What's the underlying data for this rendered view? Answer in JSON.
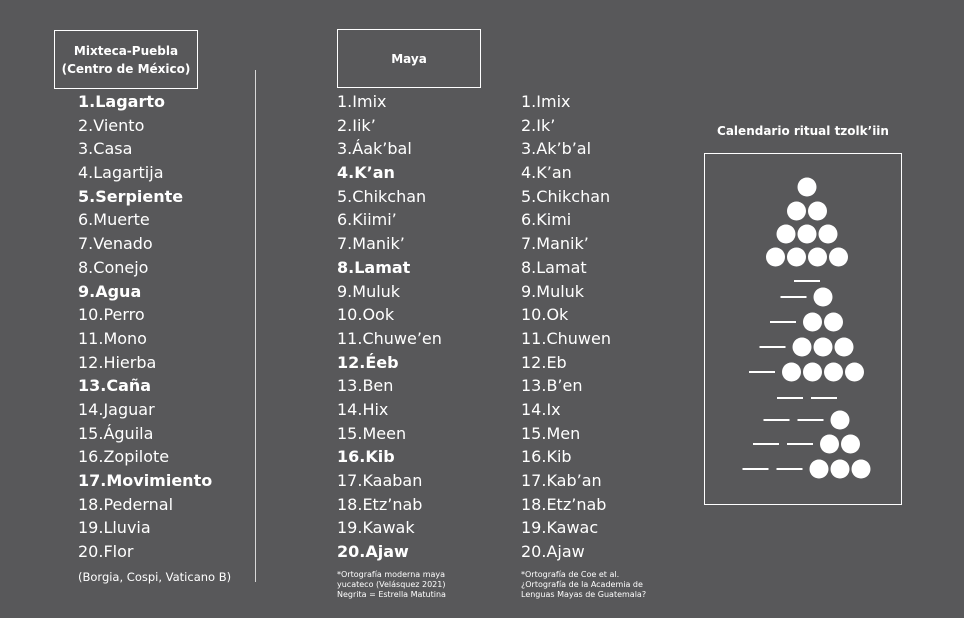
{
  "headers": {
    "mixteca": [
      "Mixteca-Puebla",
      "(Centro de México)"
    ],
    "maya": "Maya"
  },
  "mixteca_days": [
    {
      "label": "1.Lagarto",
      "bold": true
    },
    {
      "label": "2.Viento",
      "bold": false
    },
    {
      "label": "3.Casa",
      "bold": false
    },
    {
      "label": "4.Lagartija",
      "bold": false
    },
    {
      "label": "5.Serpiente",
      "bold": true
    },
    {
      "label": "6.Muerte",
      "bold": false
    },
    {
      "label": "7.Venado",
      "bold": false
    },
    {
      "label": "8.Conejo",
      "bold": false
    },
    {
      "label": "9.Agua",
      "bold": true
    },
    {
      "label": "10.Perro",
      "bold": false
    },
    {
      "label": "11.Mono",
      "bold": false
    },
    {
      "label": "12.Hierba",
      "bold": false
    },
    {
      "label": "13.Caña",
      "bold": true
    },
    {
      "label": "14.Jaguar",
      "bold": false
    },
    {
      "label": "15.Águila",
      "bold": false
    },
    {
      "label": "16.Zopilote",
      "bold": false
    },
    {
      "label": "17.Movimiento",
      "bold": true
    },
    {
      "label": "18.Pedernal",
      "bold": false
    },
    {
      "label": "19.Lluvia",
      "bold": false
    },
    {
      "label": "20.Flor",
      "bold": false
    }
  ],
  "mixteca_source": "(Borgia, Cospi, Vaticano B)",
  "maya_yucateco_days": [
    {
      "label": "1.Imix",
      "bold": false
    },
    {
      "label": "2.Iik’",
      "bold": false
    },
    {
      "label": "3.Áak’bal",
      "bold": false
    },
    {
      "label": "4.K’an",
      "bold": true
    },
    {
      "label": "5.Chikchan",
      "bold": false
    },
    {
      "label": "6.Kiimi’",
      "bold": false
    },
    {
      "label": "7.Manik’",
      "bold": false
    },
    {
      "label": "8.Lamat",
      "bold": true
    },
    {
      "label": "9.Muluk",
      "bold": false
    },
    {
      "label": "10.Ook",
      "bold": false
    },
    {
      "label": "11.Chuwe’en",
      "bold": false
    },
    {
      "label": "12.Éeb",
      "bold": true
    },
    {
      "label": "13.Ben",
      "bold": false
    },
    {
      "label": "14.Hix",
      "bold": false
    },
    {
      "label": "15.Meen",
      "bold": false
    },
    {
      "label": "16.Kib",
      "bold": true
    },
    {
      "label": "17.Kaaban",
      "bold": false
    },
    {
      "label": "18.Etz’nab",
      "bold": false
    },
    {
      "label": "19.Kawak",
      "bold": false
    },
    {
      "label": "20.Ajaw",
      "bold": true
    }
  ],
  "maya_yucateco_note": [
    "*Ortografía moderna maya",
    "yucateco (Velásquez 2021)",
    "Negrita = Estrella Matutina"
  ],
  "maya_alm_days": [
    {
      "label": "1.Imix",
      "bold": false
    },
    {
      "label": "2.Ik’",
      "bold": false
    },
    {
      "label": "3.Ak’b’al",
      "bold": false
    },
    {
      "label": "4.K’an",
      "bold": false
    },
    {
      "label": "5.Chikchan",
      "bold": false
    },
    {
      "label": "6.Kimi",
      "bold": false
    },
    {
      "label": "7.Manik’",
      "bold": false
    },
    {
      "label": "8.Lamat",
      "bold": false
    },
    {
      "label": "9.Muluk",
      "bold": false
    },
    {
      "label": "10.Ok",
      "bold": false
    },
    {
      "label": "11.Chuwen",
      "bold": false
    },
    {
      "label": "12.Eb",
      "bold": false
    },
    {
      "label": "13.B’en",
      "bold": false
    },
    {
      "label": "14.Ix",
      "bold": false
    },
    {
      "label": "15.Men",
      "bold": false
    },
    {
      "label": "16.Kib",
      "bold": false
    },
    {
      "label": "17.Kab’an",
      "bold": false
    },
    {
      "label": "18.Etz’nab",
      "bold": false
    },
    {
      "label": "19.Kawac",
      "bold": false
    },
    {
      "label": "20.Ajaw",
      "bold": false
    }
  ],
  "maya_alm_note": [
    "*Ortografía de Coe et al.",
    "¿Ortografía de la Academia de",
    "Lenguas Mayas de Guatemala?"
  ],
  "calendar": {
    "title": "Calendario ritual tzolk’iin",
    "numerals": [
      {
        "bars": 0,
        "dots": 1
      },
      {
        "bars": 0,
        "dots": 2
      },
      {
        "bars": 0,
        "dots": 3
      },
      {
        "bars": 0,
        "dots": 4
      },
      {
        "bars": 1,
        "dots": 0
      },
      {
        "bars": 1,
        "dots": 1
      },
      {
        "bars": 1,
        "dots": 2
      },
      {
        "bars": 1,
        "dots": 3
      },
      {
        "bars": 1,
        "dots": 4
      },
      {
        "bars": 2,
        "dots": 0
      },
      {
        "bars": 2,
        "dots": 1
      },
      {
        "bars": 2,
        "dots": 2
      },
      {
        "bars": 2,
        "dots": 3
      }
    ]
  }
}
